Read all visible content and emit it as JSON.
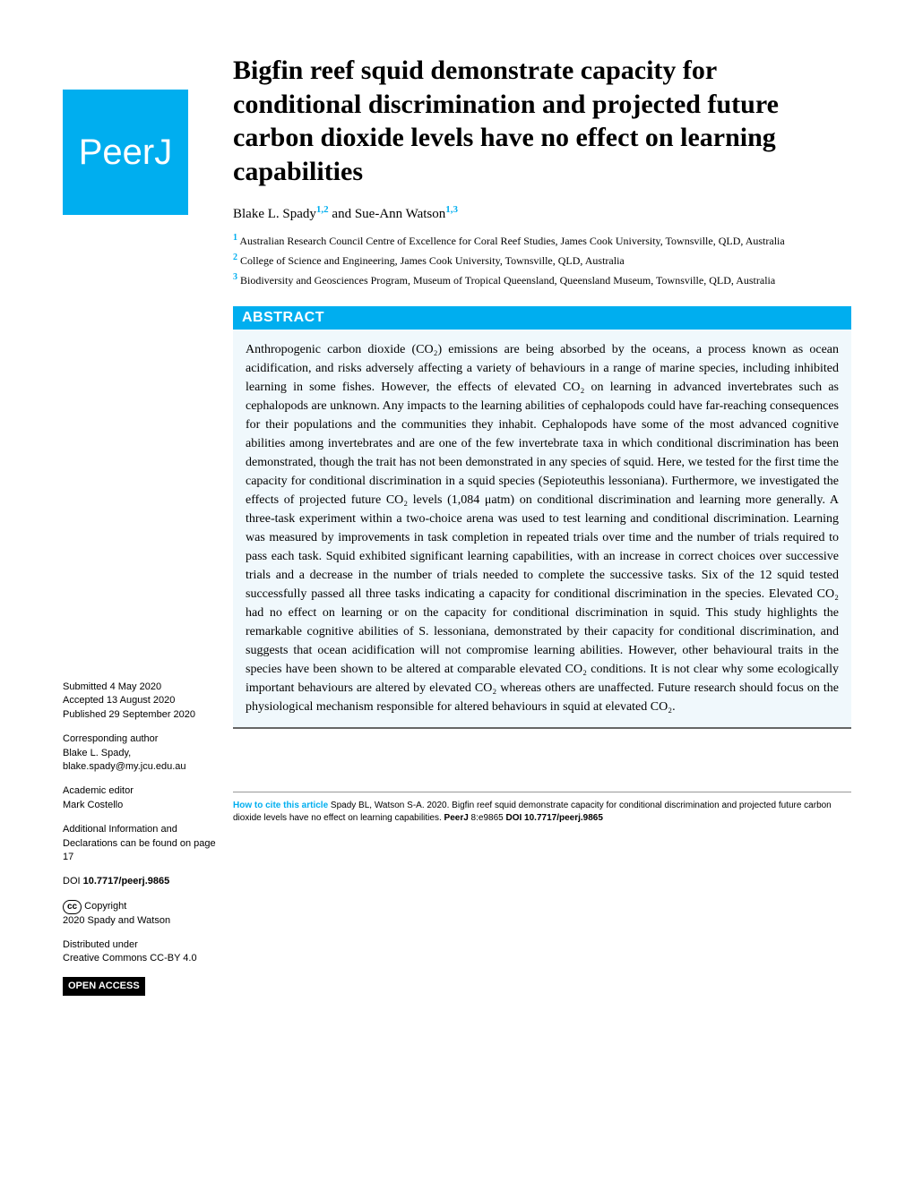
{
  "logo_text": "PeerJ",
  "title": "Bigfin reef squid demonstrate capacity for conditional discrimination and projected future carbon dioxide levels have no effect on learning capabilities",
  "authors": {
    "author1_name": "Blake L. Spady",
    "author1_sup": "1,2",
    "connector": " and ",
    "author2_name": "Sue-Ann Watson",
    "author2_sup": "1,3"
  },
  "affiliations": {
    "a1_num": "1",
    "a1_text": " Australian Research Council Centre of Excellence for Coral Reef Studies, James Cook University, Townsville, QLD, Australia",
    "a2_num": "2",
    "a2_text": " College of Science and Engineering, James Cook University, Townsville, QLD, Australia",
    "a3_num": "3",
    "a3_text": " Biodiversity and Geosciences Program, Museum of Tropical Queensland, Queensland Museum, Townsville, QLD, Australia"
  },
  "abstract_header": "ABSTRACT",
  "abstract_body": "Anthropogenic carbon dioxide (CO₂) emissions are being absorbed by the oceans, a process known as ocean acidification, and risks adversely affecting a variety of behaviours in a range of marine species, including inhibited learning in some fishes. However, the effects of elevated CO₂ on learning in advanced invertebrates such as cephalopods are unknown. Any impacts to the learning abilities of cephalopods could have far-reaching consequences for their populations and the communities they inhabit. Cephalopods have some of the most advanced cognitive abilities among invertebrates and are one of the few invertebrate taxa in which conditional discrimination has been demonstrated, though the trait has not been demonstrated in any species of squid. Here, we tested for the first time the capacity for conditional discrimination in a squid species (Sepioteuthis lessoniana). Furthermore, we investigated the effects of projected future CO₂ levels (1,084 μatm) on conditional discrimination and learning more generally. A three-task experiment within a two-choice arena was used to test learning and conditional discrimination. Learning was measured by improvements in task completion in repeated trials over time and the number of trials required to pass each task. Squid exhibited significant learning capabilities, with an increase in correct choices over successive trials and a decrease in the number of trials needed to complete the successive tasks. Six of the 12 squid tested successfully passed all three tasks indicating a capacity for conditional discrimination in the species. Elevated CO₂ had no effect on learning or on the capacity for conditional discrimination in squid. This study highlights the remarkable cognitive abilities of S. lessoniana, demonstrated by their capacity for conditional discrimination, and suggests that ocean acidification will not compromise learning abilities. However, other behavioural traits in the species have been shown to be altered at comparable elevated CO₂ conditions. It is not clear why some ecologically important behaviours are altered by elevated CO₂ whereas others are unaffected. Future research should focus on the physiological mechanism responsible for altered behaviours in squid at elevated CO₂.",
  "sidebar": {
    "submitted_label": "Submitted",
    "submitted_date": " 4 May 2020",
    "accepted_label": "Accepted",
    "accepted_date": " 13 August 2020",
    "published_label": "Published",
    "published_date": " 29 September 2020",
    "corr_label": "Corresponding author",
    "corr_name": "Blake L. Spady,",
    "corr_email": "blake.spady@my.jcu.edu.au",
    "editor_label": "Academic editor",
    "editor_name": "Mark Costello",
    "addl_info": "Additional Information and Declarations can be found on page 17",
    "doi_label": "DOI ",
    "doi_value": "10.7717/peerj.9865",
    "cc_symbol": "cc",
    "copyright_label": " Copyright",
    "copyright_holder": "2020 Spady and Watson",
    "dist_label": "Distributed under",
    "dist_license": "Creative Commons CC-BY 4.0",
    "open_access": "OPEN ACCESS"
  },
  "citation": {
    "label": "How to cite this article",
    "text": " Spady BL, Watson S-A. 2020. Bigfin reef squid demonstrate capacity for conditional discrimination and projected future carbon dioxide levels have no effect on learning capabilities. ",
    "journal": "PeerJ",
    "ref": " 8:e9865 ",
    "doi_label": "DOI 10.7717/peerj.9865"
  },
  "colors": {
    "brand_blue": "#00aeef",
    "abstract_bg": "#f0f8fc"
  }
}
